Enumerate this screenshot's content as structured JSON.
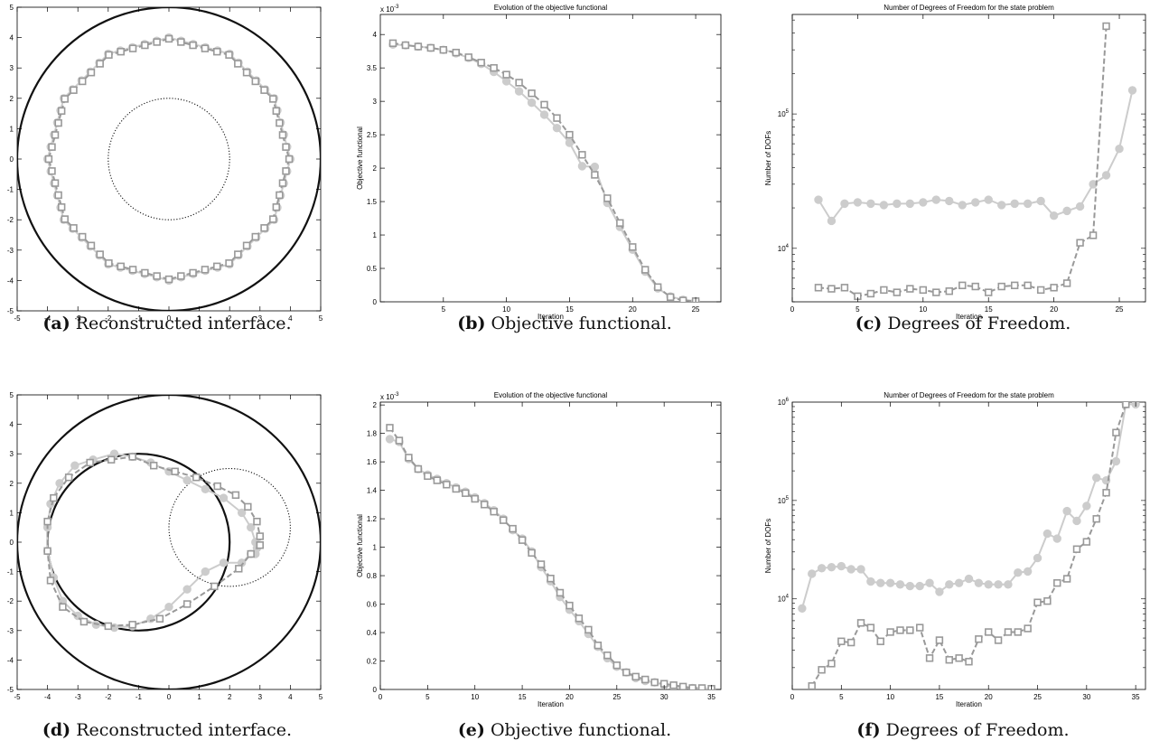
{
  "captions": [
    {
      "label": "(a)",
      "text": "Reconstructed interface."
    },
    {
      "label": "(b)",
      "text": "Objective functional."
    },
    {
      "label": "(c)",
      "text": "Degrees of Freedom."
    },
    {
      "label": "(d)",
      "text": "Reconstructed interface."
    },
    {
      "label": "(e)",
      "text": "Objective functional."
    },
    {
      "label": "(f)",
      "text": "Degrees of Freedom."
    }
  ],
  "colors": {
    "light": "#cccccc",
    "dark": "#999999",
    "axis": "#000000"
  },
  "chart_data": [
    {
      "type": "scatter",
      "panel": "a",
      "title": "",
      "xlabel": "",
      "ylabel": "",
      "xlim": [
        -5,
        5
      ],
      "ylim": [
        -5,
        5
      ],
      "xticks": [
        -5,
        -4,
        -3,
        -2,
        -1,
        0,
        1,
        2,
        3,
        4,
        5
      ],
      "yticks": [
        -5,
        -4,
        -3,
        -2,
        -1,
        0,
        1,
        2,
        3,
        4,
        5
      ],
      "shapes": [
        {
          "kind": "circle",
          "cx": 0,
          "cy": 0,
          "r": 5,
          "style": "solid-black"
        },
        {
          "kind": "circle",
          "cx": 0,
          "cy": 0,
          "r": 2,
          "style": "dotted-black"
        }
      ],
      "series": [
        {
          "style": "light-solid-circle",
          "shape": "polygon",
          "cx": 0,
          "cy": 0,
          "r": 4,
          "sides": 12,
          "n": 60
        },
        {
          "style": "dark-dashed-square",
          "shape": "polygon",
          "cx": 0,
          "cy": 0,
          "r": 3.96,
          "sides": 12,
          "n": 60
        }
      ]
    },
    {
      "type": "line",
      "panel": "b",
      "title": "Evolution of the objective functional",
      "xlabel": "Iteration",
      "ylabel": "Objective functional",
      "exponent_label": "x 10",
      "exponent": "-3",
      "xlim": [
        0,
        27
      ],
      "ylim": [
        0,
        4.3
      ],
      "xticks": [
        5,
        10,
        15,
        20,
        25
      ],
      "yticks": [
        0,
        0.5,
        1,
        1.5,
        2,
        2.5,
        3,
        3.5,
        4
      ],
      "series": [
        {
          "style": "light-solid-circle",
          "x": [
            1,
            2,
            3,
            4,
            5,
            6,
            7,
            8,
            9,
            10,
            11,
            12,
            13,
            14,
            15,
            16,
            17,
            18,
            19,
            20,
            21,
            22,
            23,
            24,
            25
          ],
          "y": [
            3.85,
            3.84,
            3.82,
            3.8,
            3.77,
            3.72,
            3.65,
            3.56,
            3.44,
            3.3,
            3.15,
            2.98,
            2.8,
            2.6,
            2.38,
            2.03,
            2.02,
            1.48,
            1.12,
            0.78,
            0.45,
            0.2,
            0.08,
            0.03,
            0.01
          ]
        },
        {
          "style": "dark-dashed-square",
          "x": [
            1,
            2,
            3,
            4,
            5,
            6,
            7,
            8,
            9,
            10,
            11,
            12,
            13,
            14,
            15,
            16,
            17,
            18,
            19,
            20,
            21,
            22,
            23,
            24,
            25
          ],
          "y": [
            3.87,
            3.84,
            3.82,
            3.8,
            3.77,
            3.73,
            3.66,
            3.58,
            3.5,
            3.4,
            3.28,
            3.12,
            2.95,
            2.75,
            2.5,
            2.2,
            1.9,
            1.55,
            1.18,
            0.82,
            0.48,
            0.22,
            0.07,
            0.02,
            0.01
          ]
        }
      ]
    },
    {
      "type": "line",
      "panel": "c",
      "title": "Number of Degrees of Freedom for the state problem",
      "xlabel": "Iteration",
      "ylabel": "Number of DOFs",
      "yscale": "log",
      "xlim": [
        0,
        27
      ],
      "ylim": [
        4000,
        550000
      ],
      "xticks": [
        0,
        5,
        10,
        15,
        20,
        25
      ],
      "yticks": [
        10000,
        100000
      ],
      "ytick_labels": [
        {
          "base": "10",
          "exp": "4"
        },
        {
          "base": "10",
          "exp": "5"
        }
      ],
      "series": [
        {
          "style": "light-solid-circle",
          "x": [
            2,
            3,
            4,
            5,
            6,
            7,
            8,
            9,
            10,
            11,
            12,
            13,
            14,
            15,
            16,
            17,
            18,
            19,
            20,
            21,
            22,
            23,
            24,
            25,
            26
          ],
          "y": [
            23000,
            16000,
            21500,
            22000,
            21500,
            21000,
            21500,
            21500,
            22000,
            23000,
            22500,
            21000,
            22000,
            23000,
            21000,
            21500,
            21500,
            22500,
            17500,
            19000,
            20500,
            30000,
            35000,
            55000,
            150000
          ]
        },
        {
          "style": "dark-dashed-square",
          "x": [
            2,
            3,
            4,
            5,
            6,
            7,
            8,
            9,
            10,
            11,
            12,
            13,
            14,
            15,
            16,
            17,
            18,
            19,
            20,
            21,
            22,
            23,
            24
          ],
          "y": [
            5100,
            5000,
            5100,
            4400,
            4600,
            4900,
            4700,
            5000,
            4900,
            4700,
            4800,
            5300,
            5200,
            4700,
            5200,
            5300,
            5300,
            4900,
            5100,
            5500,
            11000,
            12500,
            450000
          ]
        }
      ]
    },
    {
      "type": "scatter",
      "panel": "d",
      "title": "",
      "xlabel": "",
      "ylabel": "",
      "xlim": [
        -5,
        5
      ],
      "ylim": [
        -5,
        5
      ],
      "xticks": [
        -5,
        -4,
        -3,
        -2,
        -1,
        0,
        1,
        2,
        3,
        4,
        5
      ],
      "yticks": [
        -5,
        -4,
        -3,
        -2,
        -1,
        0,
        1,
        2,
        3,
        4,
        5
      ],
      "shapes": [
        {
          "kind": "circle",
          "cx": 0,
          "cy": 0,
          "r": 5,
          "style": "solid-black"
        },
        {
          "kind": "ellipse",
          "cx": -1,
          "cy": 0,
          "rx": 3,
          "ry": 3,
          "style": "solid-black"
        },
        {
          "kind": "ellipse",
          "cx": 2,
          "cy": 0.5,
          "rx": 2,
          "ry": 2,
          "style": "dotted-black"
        }
      ],
      "series": [
        {
          "style": "light-solid-circle",
          "x": [
            2.7,
            2.4,
            1.8,
            1.2,
            0.6,
            0.0,
            -0.6,
            -1.2,
            -1.8,
            -2.4,
            -3.0,
            -3.5,
            -3.8,
            -4.0,
            -4.0,
            -3.9,
            -3.6,
            -3.1,
            -2.5,
            -1.8,
            -1.2,
            -0.6,
            0.0,
            0.6,
            1.2,
            1.8,
            2.4,
            2.7,
            2.85,
            2.9,
            2.85
          ],
          "y": [
            -0.4,
            -0.7,
            -0.7,
            -1.0,
            -1.6,
            -2.2,
            -2.6,
            -2.85,
            -2.9,
            -2.8,
            -2.5,
            -2.0,
            -1.2,
            -0.3,
            0.5,
            1.3,
            2.0,
            2.6,
            2.8,
            3.0,
            2.9,
            2.7,
            2.4,
            2.1,
            1.8,
            1.5,
            1.0,
            0.5,
            0.0,
            -0.2,
            -0.4
          ]
        },
        {
          "style": "dark-dashed-square",
          "x": [
            3.0,
            2.7,
            2.3,
            1.5,
            0.6,
            -0.3,
            -1.2,
            -2.0,
            -2.8,
            -3.5,
            -3.9,
            -4.0,
            -4.0,
            -3.8,
            -3.3,
            -2.6,
            -1.9,
            -1.2,
            -0.5,
            0.2,
            0.9,
            1.6,
            2.2,
            2.6,
            2.9,
            3.0,
            3.0
          ],
          "y": [
            -0.1,
            -0.4,
            -0.9,
            -1.5,
            -2.1,
            -2.6,
            -2.8,
            -2.85,
            -2.7,
            -2.2,
            -1.3,
            -0.3,
            0.7,
            1.5,
            2.2,
            2.7,
            2.8,
            2.9,
            2.6,
            2.4,
            2.2,
            1.9,
            1.6,
            1.2,
            0.7,
            0.2,
            -0.1
          ]
        }
      ]
    },
    {
      "type": "line",
      "panel": "e",
      "title": "Evolution of the objective functional",
      "xlabel": "Iteration",
      "ylabel": "Objective functional",
      "exponent_label": "x 10",
      "exponent": "-3",
      "xlim": [
        0,
        36
      ],
      "ylim": [
        0,
        2.02
      ],
      "xticks": [
        0,
        5,
        10,
        15,
        20,
        25,
        30,
        35
      ],
      "yticks": [
        0,
        0.2,
        0.4,
        0.6,
        0.8,
        1,
        1.2,
        1.4,
        1.6,
        1.8,
        2
      ],
      "series": [
        {
          "style": "light-solid-circle",
          "x": [
            1,
            2,
            3,
            4,
            5,
            6,
            7,
            8,
            9,
            10,
            11,
            12,
            13,
            14,
            15,
            16,
            17,
            18,
            19,
            20,
            21,
            22,
            23,
            24,
            25,
            26,
            27,
            28,
            29,
            30,
            31,
            32,
            33,
            34,
            35
          ],
          "y": [
            1.76,
            1.74,
            1.62,
            1.55,
            1.51,
            1.48,
            1.45,
            1.42,
            1.39,
            1.35,
            1.31,
            1.26,
            1.2,
            1.12,
            1.06,
            0.97,
            0.86,
            0.76,
            0.65,
            0.56,
            0.48,
            0.39,
            0.3,
            0.22,
            0.16,
            0.12,
            0.08,
            0.06,
            0.05,
            0.03,
            0.02,
            0.01,
            0.01,
            0.005,
            0.003
          ]
        },
        {
          "style": "dark-dashed-square",
          "x": [
            1,
            2,
            3,
            4,
            5,
            6,
            7,
            8,
            9,
            10,
            11,
            12,
            13,
            14,
            15,
            16,
            17,
            18,
            19,
            20,
            21,
            22,
            23,
            24,
            25,
            26,
            27,
            28,
            29,
            30,
            31,
            32,
            33,
            34,
            35
          ],
          "y": [
            1.84,
            1.75,
            1.63,
            1.55,
            1.5,
            1.47,
            1.44,
            1.41,
            1.38,
            1.34,
            1.3,
            1.25,
            1.19,
            1.13,
            1.05,
            0.96,
            0.88,
            0.78,
            0.68,
            0.59,
            0.5,
            0.42,
            0.31,
            0.24,
            0.17,
            0.12,
            0.09,
            0.07,
            0.05,
            0.04,
            0.03,
            0.02,
            0.01,
            0.01,
            0.005
          ]
        }
      ]
    },
    {
      "type": "line",
      "panel": "f",
      "title": "Number of Degrees of Freedom for the state problem",
      "xlabel": "Iteration",
      "ylabel": "Number of DOFs",
      "yscale": "log",
      "xlim": [
        0,
        36
      ],
      "ylim": [
        1200,
        1000000
      ],
      "xticks": [
        0,
        5,
        10,
        15,
        20,
        25,
        30,
        35
      ],
      "yticks": [
        10000,
        100000,
        1000000
      ],
      "ytick_labels": [
        {
          "base": "10",
          "exp": "4"
        },
        {
          "base": "10",
          "exp": "5"
        },
        {
          "base": "10",
          "exp": "6"
        }
      ],
      "series": [
        {
          "style": "light-solid-circle",
          "x": [
            1,
            2,
            3,
            4,
            5,
            6,
            7,
            8,
            9,
            10,
            11,
            12,
            13,
            14,
            15,
            16,
            17,
            18,
            19,
            20,
            21,
            22,
            23,
            24,
            25,
            26,
            27,
            28,
            29,
            30,
            31,
            32,
            33,
            34,
            35
          ],
          "y": [
            8000,
            18000,
            20500,
            21000,
            21500,
            20000,
            20000,
            15000,
            14500,
            14500,
            14000,
            13500,
            13500,
            14500,
            11800,
            14000,
            14500,
            16000,
            14500,
            14000,
            14000,
            14000,
            18500,
            19000,
            26000,
            46000,
            41000,
            78000,
            62000,
            88000,
            170000,
            160000,
            250000,
            950000,
            950000
          ]
        },
        {
          "style": "dark-dashed-square",
          "x": [
            2,
            3,
            4,
            5,
            6,
            7,
            8,
            9,
            10,
            11,
            12,
            13,
            14,
            15,
            16,
            17,
            18,
            19,
            20,
            21,
            22,
            23,
            24,
            25,
            26,
            27,
            28,
            29,
            30,
            31,
            32,
            33,
            34
          ],
          "y": [
            1300,
            1900,
            2200,
            3700,
            3600,
            5700,
            5100,
            3700,
            4600,
            4800,
            4800,
            5100,
            2500,
            3800,
            2400,
            2500,
            2300,
            3900,
            4600,
            3800,
            4600,
            4600,
            5000,
            9200,
            9500,
            14500,
            16000,
            32000,
            38000,
            65000,
            120000,
            490000,
            950000
          ]
        }
      ]
    }
  ]
}
